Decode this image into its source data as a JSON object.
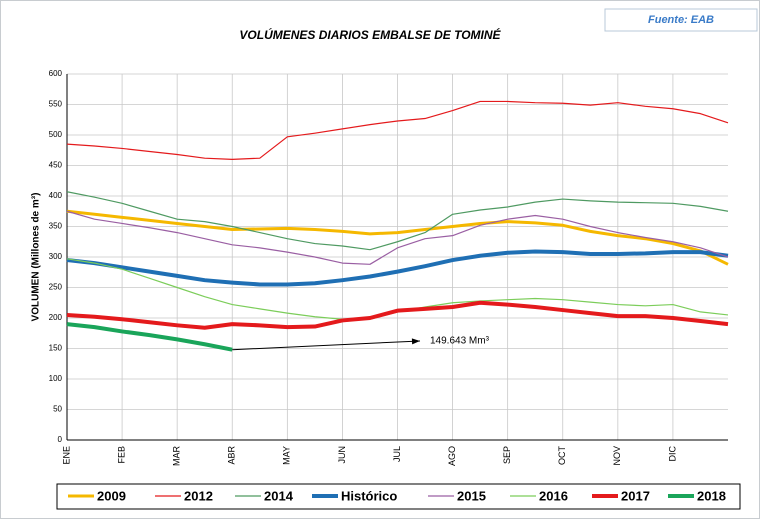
{
  "chart_data": {
    "type": "line",
    "title": "VOLÚMENES DIARIOS EMBALSE DE TOMINÉ",
    "source": "Fuente: EAB",
    "y_label": "VOLUMEN (Millones de m³)",
    "annotation": "149.643 Mm³",
    "categories": [
      "ENE",
      null,
      "FEB",
      null,
      "MAR",
      null,
      "ABR",
      null,
      "MAY",
      null,
      "JUN",
      null,
      "JUL",
      null,
      "AGO",
      null,
      "SEP",
      null,
      "OCT",
      null,
      "NOV",
      null,
      "DIC",
      null,
      null
    ],
    "ylim": [
      0,
      600
    ],
    "yticks": [
      0,
      50,
      100,
      150,
      200,
      250,
      300,
      350,
      400,
      450,
      500,
      550,
      600
    ],
    "grid": true,
    "series": [
      {
        "name": "2009",
        "color": "#f5b800",
        "line_width": 3,
        "values": [
          375,
          370,
          365,
          360,
          355,
          350,
          345,
          346,
          347,
          345,
          342,
          338,
          340,
          345,
          350,
          355,
          358,
          356,
          352,
          342,
          335,
          330,
          322,
          310,
          288
        ]
      },
      {
        "name": "2012",
        "color": "#e41a1c",
        "line_width": 1.2,
        "values": [
          485,
          482,
          478,
          473,
          468,
          462,
          460,
          462,
          497,
          503,
          510,
          517,
          523,
          527,
          540,
          555,
          555,
          553,
          552,
          549,
          553,
          547,
          543,
          535,
          520
        ]
      },
      {
        "name": "2014",
        "color": "#4f9a62",
        "line_width": 1.2,
        "values": [
          407,
          398,
          388,
          375,
          362,
          358,
          350,
          340,
          330,
          322,
          318,
          312,
          325,
          340,
          370,
          377,
          382,
          390,
          395,
          392,
          390,
          389,
          388,
          383,
          375
        ]
      },
      {
        "name": "Histórico",
        "color": "#1f6fb4",
        "line_width": 4,
        "values": [
          295,
          290,
          283,
          276,
          269,
          262,
          258,
          255,
          255,
          257,
          262,
          268,
          276,
          285,
          295,
          302,
          307,
          309,
          308,
          305,
          305,
          306,
          308,
          308,
          302
        ]
      },
      {
        "name": "2015",
        "color": "#9a5fa3",
        "line_width": 1.2,
        "values": [
          375,
          362,
          355,
          348,
          340,
          330,
          320,
          315,
          308,
          300,
          290,
          288,
          315,
          330,
          335,
          352,
          362,
          368,
          362,
          350,
          340,
          332,
          325,
          315,
          300
        ]
      },
      {
        "name": "2016",
        "color": "#7ccd5a",
        "line_width": 1.2,
        "values": [
          297,
          290,
          280,
          265,
          250,
          235,
          222,
          215,
          208,
          202,
          198,
          198,
          210,
          218,
          225,
          228,
          230,
          232,
          230,
          226,
          222,
          220,
          222,
          210,
          205
        ]
      },
      {
        "name": "2017",
        "color": "#e41a1c",
        "line_width": 4,
        "values": [
          205,
          202,
          198,
          193,
          188,
          184,
          190,
          188,
          185,
          186,
          196,
          200,
          212,
          215,
          218,
          225,
          222,
          218,
          213,
          208,
          203,
          203,
          200,
          195,
          190
        ]
      },
      {
        "name": "2018",
        "color": "#1aa55a",
        "line_width": 4,
        "values": [
          190,
          185,
          178,
          172,
          165,
          157,
          148,
          null,
          null,
          null,
          null,
          null,
          null,
          null,
          null,
          null,
          null,
          null,
          null,
          null,
          null,
          null,
          null,
          null,
          null
        ]
      }
    ]
  }
}
